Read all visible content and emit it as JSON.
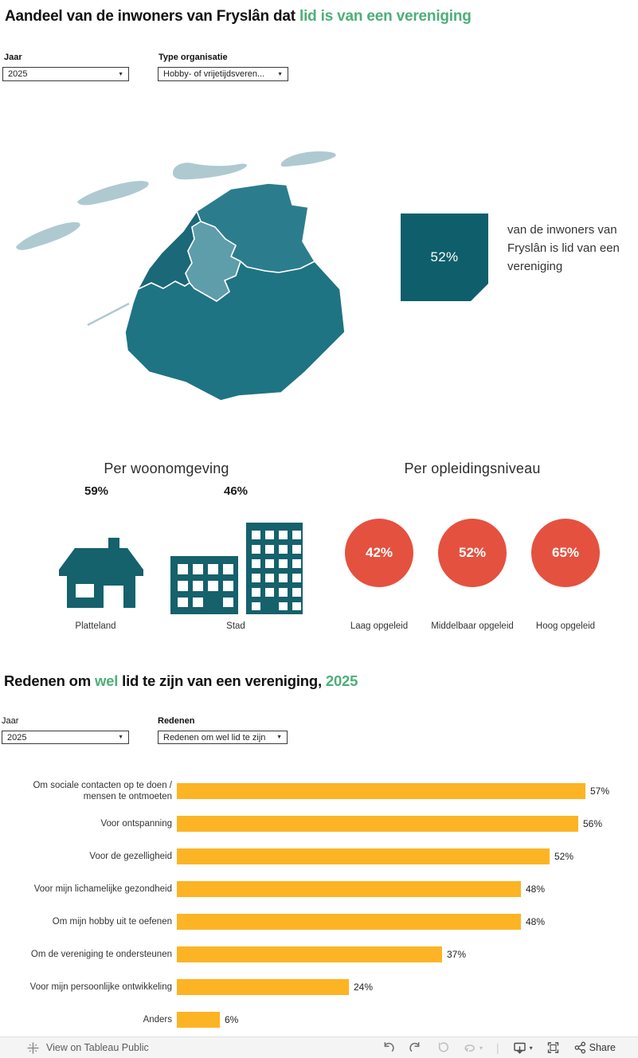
{
  "theme": {
    "green": "#4CAF78",
    "teal-dark": "#0E5F6B",
    "teal-icon": "#15616C",
    "map-nw": "#1A6878",
    "map-ne": "#2B7D8D",
    "map-center": "#5E9DAA",
    "map-south": "#1E7482",
    "island": "#AFC9D1",
    "red": "#E5513F",
    "amber": "#FCB424",
    "footer-bg": "#F4F4F4"
  },
  "title1": {
    "pre": "Aandeel van de inwoners van Fryslân dat ",
    "highlight": "lid is van een vereniging"
  },
  "filters1": {
    "jaar_label": "Jaar",
    "jaar_value": "2025",
    "type_label": "Type organisatie",
    "type_value": "Hobby- of vrijetijdsveren...",
    "caret": "▼"
  },
  "stat_card": {
    "value": "52%",
    "text": "van de inwoners van Fryslân is lid van een vereniging"
  },
  "woonomgeving": {
    "title": "Per woonomgeving",
    "items": [
      {
        "label": "Platteland",
        "value": "59%"
      },
      {
        "label": "Stad",
        "value": "46%"
      }
    ]
  },
  "opleiding": {
    "title": "Per opleidingsniveau",
    "items": [
      {
        "label": "Laag opgeleid",
        "value": "42%"
      },
      {
        "label": "Middelbaar opgeleid",
        "value": "52%"
      },
      {
        "label": "Hoog opgeleid",
        "value": "65%"
      }
    ]
  },
  "title2": {
    "pre": "Redenen om ",
    "h1": "wel",
    "mid": " lid te zijn van een vereniging, ",
    "h2": "2025"
  },
  "filters2": {
    "jaar_label": "Jaar",
    "jaar_value": "2025",
    "redenen_label": "Redenen",
    "redenen_value": "Redenen om wel lid te zijn",
    "caret": "▼"
  },
  "chart_data": {
    "type": "bar",
    "orientation": "horizontal",
    "categories": [
      "Om sociale contacten op te doen / mensen te ontmoeten",
      "Voor ontspanning",
      "Voor de gezelligheid",
      "Voor mijn lichamelijke gezondheid",
      "Om mijn hobby uit te oefenen",
      "Om de vereniging te ondersteunen",
      "Voor mijn persoonlijke ontwikkeling",
      "Anders"
    ],
    "values": [
      57,
      56,
      52,
      48,
      48,
      37,
      24,
      6
    ],
    "value_labels": [
      "57%",
      "56%",
      "52%",
      "48%",
      "48%",
      "37%",
      "24%",
      "6%"
    ],
    "xlim": [
      0,
      60
    ],
    "bar_color": "#FCB424",
    "grid": false,
    "title": "Redenen om wel lid te zijn van een vereniging, 2025"
  },
  "infographic_data": [
    {
      "group": "Totaal",
      "value": 52
    },
    {
      "group": "Platteland",
      "value": 59
    },
    {
      "group": "Stad",
      "value": 46
    },
    {
      "group": "Laag opgeleid",
      "value": 42
    },
    {
      "group": "Middelbaar opgeleid",
      "value": 52
    },
    {
      "group": "Hoog opgeleid",
      "value": 65
    }
  ],
  "footer": {
    "view_text": "View on Tableau Public",
    "share_label": "Share",
    "caret": "▾",
    "separator": "|"
  }
}
